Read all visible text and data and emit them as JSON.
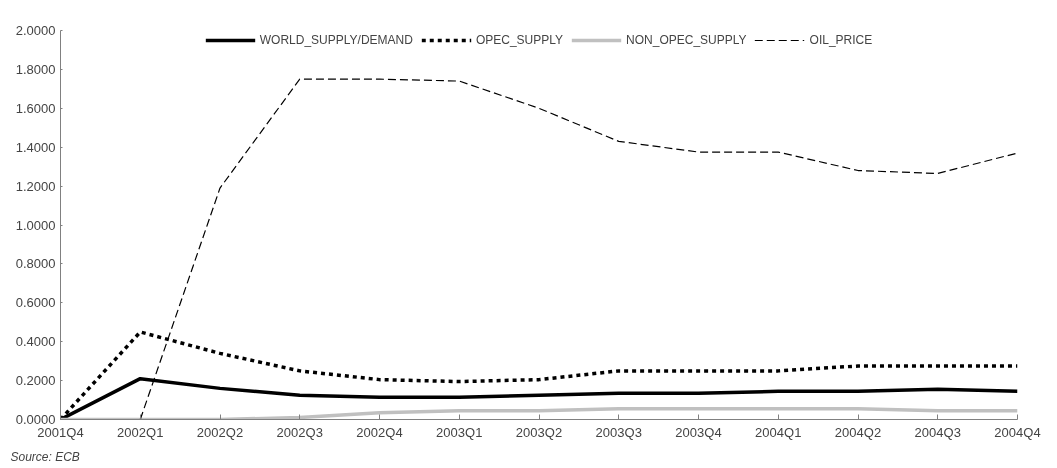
{
  "chart_data": {
    "type": "line",
    "categories": [
      "2001Q4",
      "2002Q1",
      "2002Q2",
      "2002Q3",
      "2002Q4",
      "2003Q1",
      "2003Q2",
      "2003Q3",
      "2003Q4",
      "2004Q1",
      "2004Q2",
      "2004Q3",
      "2004Q4"
    ],
    "ylim": [
      0,
      2
    ],
    "yticks": [
      {
        "value": 0,
        "label": "0.0000"
      },
      {
        "value": 0.2,
        "label": "0.2000"
      },
      {
        "value": 0.4,
        "label": "0.4000"
      },
      {
        "value": 0.6,
        "label": "0.6000"
      },
      {
        "value": 0.8,
        "label": "0.8000"
      },
      {
        "value": 1.0,
        "label": "1.0000"
      },
      {
        "value": 1.2,
        "label": "1.2000"
      },
      {
        "value": 1.4,
        "label": "1.4000"
      },
      {
        "value": 1.6,
        "label": "1.6000"
      },
      {
        "value": 1.8,
        "label": "1.8000"
      },
      {
        "value": 2.0,
        "label": "2.0000"
      }
    ],
    "grid": false,
    "legend": "top",
    "marker": "none",
    "series": [
      {
        "name": "WORLD_SUPPLY/DEMAND",
        "color": "#000000",
        "line_style": "solid",
        "values": [
          0,
          0.21,
          0.16,
          0.125,
          0.115,
          0.115,
          0.125,
          0.135,
          0.135,
          0.145,
          0.145,
          0.155,
          0.145
        ]
      },
      {
        "name": "OPEC_SUPPLY",
        "color": "#000000",
        "line_style": "dotted",
        "values": [
          0,
          0.45,
          0.34,
          0.25,
          0.205,
          0.195,
          0.205,
          0.25,
          0.25,
          0.25,
          0.275,
          0.275,
          0.275
        ]
      },
      {
        "name": "NON_OPEC_SUPPLY",
        "color": "#c0c0c0",
        "line_style": "solid",
        "values": [
          0,
          0,
          0,
          0.01,
          0.035,
          0.045,
          0.045,
          0.055,
          0.055,
          0.055,
          0.055,
          0.045,
          0.045
        ]
      },
      {
        "name": "OIL_PRICE",
        "color": "#000000",
        "line_style": "dashed",
        "values": [
          null,
          0,
          1.19,
          1.75,
          1.75,
          1.74,
          1.6,
          1.43,
          1.375,
          1.375,
          1.28,
          1.265,
          1.37
        ]
      }
    ],
    "annotations": [
      "Source: ECB"
    ]
  }
}
